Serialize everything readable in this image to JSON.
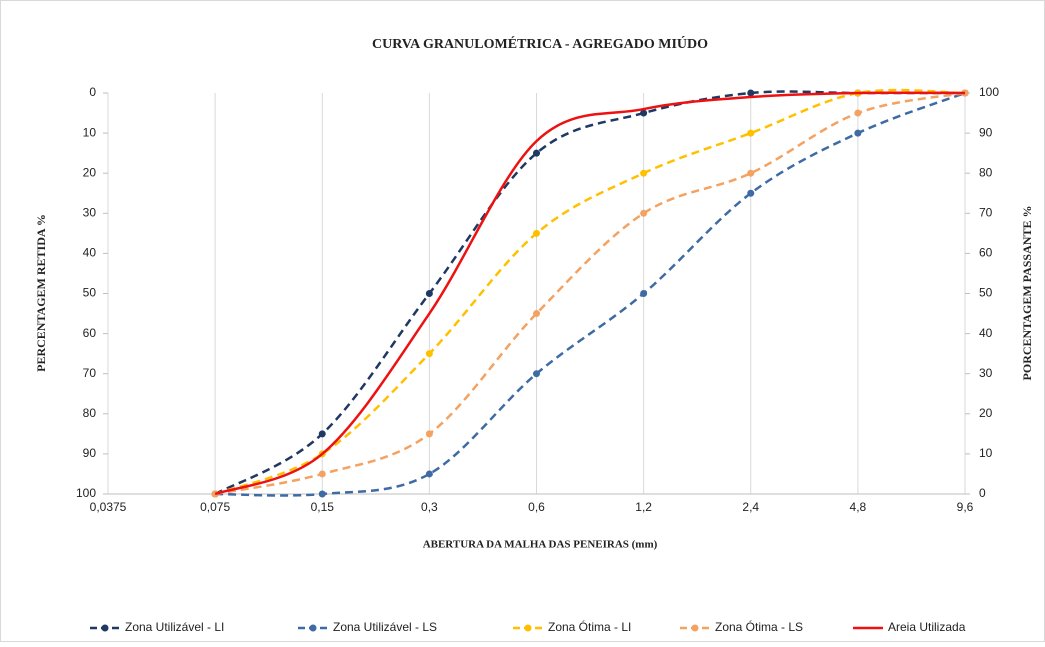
{
  "chart_data": {
    "type": "line",
    "title": "CURVA GRANULOMÉTRICA  - AGREGADO MIÚDO",
    "xlabel": "ABERTURA  DA MALHA  DAS PENEIRAS  (mm)",
    "ylabel": "PERCENTAGEM  RETIDA  %",
    "y2label": "PORCENTAGEM PASSANTE %",
    "categories": [
      "0,0375",
      "0,075",
      "0,15",
      "0,3",
      "0,6",
      "1,2",
      "2,4",
      "4,8",
      "9,6"
    ],
    "ylim": [
      100,
      0
    ],
    "yticks": [
      0,
      10,
      20,
      30,
      40,
      50,
      60,
      70,
      80,
      90,
      100
    ],
    "y2lim": [
      0,
      100
    ],
    "y2ticks": [
      0,
      10,
      20,
      30,
      40,
      50,
      60,
      70,
      80,
      90,
      100
    ],
    "grid": true,
    "legend": "bottom",
    "series": [
      {
        "name": "Zona Utilizável - LI",
        "color": "#1f3864",
        "dash": true,
        "markers": true,
        "values": [
          null,
          100,
          85,
          50,
          15,
          5,
          0,
          0,
          0
        ]
      },
      {
        "name": "Zona Utilizável - LS",
        "color": "#3f6ba5",
        "dash": true,
        "markers": true,
        "values": [
          null,
          100,
          100,
          95,
          70,
          50,
          25,
          10,
          0
        ]
      },
      {
        "name": "Zona Ótima - LI",
        "color": "#ffc000",
        "dash": true,
        "markers": true,
        "values": [
          null,
          100,
          90,
          65,
          35,
          20,
          10,
          0,
          0
        ]
      },
      {
        "name": "Zona Ótima - LS",
        "color": "#f4a261",
        "dash": true,
        "markers": true,
        "values": [
          null,
          100,
          95,
          85,
          55,
          30,
          20,
          5,
          0
        ]
      },
      {
        "name": "Areia Utilizada",
        "color": "#ee1111",
        "dash": false,
        "markers": false,
        "values": [
          null,
          100,
          90,
          55,
          12,
          4,
          1,
          0,
          0
        ]
      }
    ]
  }
}
